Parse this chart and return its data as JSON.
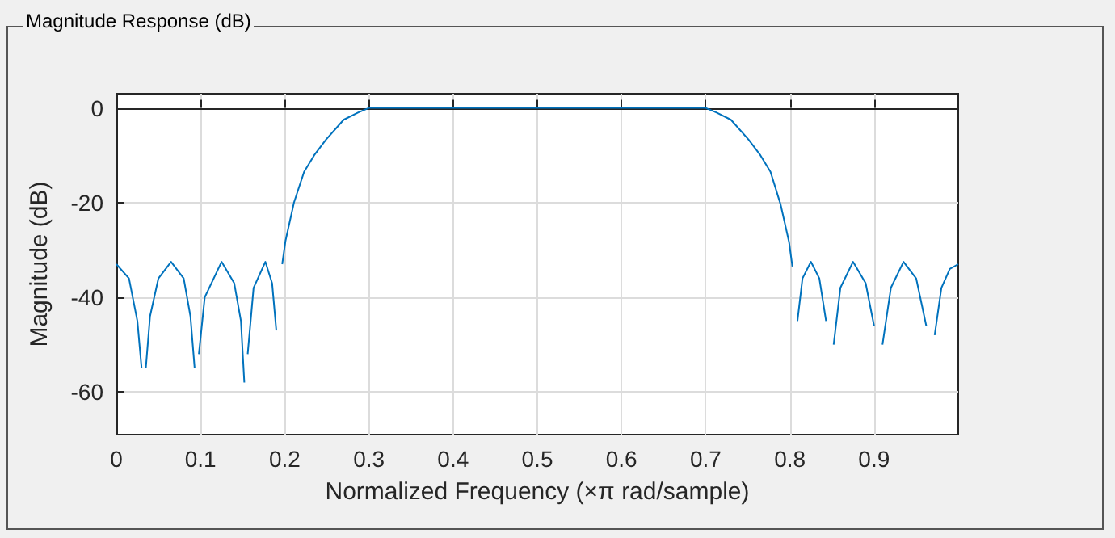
{
  "chart_data": {
    "type": "line",
    "title": "Magnitude Response (dB)",
    "xlabel": "Normalized Frequency (×π rad/sample)",
    "ylabel": "Magnitude (dB)",
    "xlim": [
      0,
      1
    ],
    "ylim": [
      -69,
      3
    ],
    "xticks": [
      0,
      0.1,
      0.2,
      0.3,
      0.4,
      0.5,
      0.6,
      0.7,
      0.8,
      0.9
    ],
    "yticks": [
      0,
      -20,
      -40,
      -60
    ],
    "grid": true,
    "marker": "none",
    "line_style": "solid",
    "series": [
      {
        "color": "#0072bd",
        "x": [
          0,
          0.015,
          0.025,
          0.03,
          0.032,
          0.035,
          0.04,
          0.05,
          0.065,
          0.08,
          0.088,
          0.093,
          0.095,
          0.098,
          0.105,
          0.125,
          0.14,
          0.148,
          0.152,
          0.153,
          0.156,
          0.163,
          0.177,
          0.185,
          0.19,
          0.193,
          0.197,
          0.201,
          0.211,
          0.223,
          0.235,
          0.249,
          0.27,
          0.287,
          0.3,
          0.4,
          0.5,
          0.6,
          0.7,
          0.713,
          0.73,
          0.751,
          0.765,
          0.777,
          0.789,
          0.799,
          0.803,
          0.806,
          0.809,
          0.815,
          0.825,
          0.835,
          0.843,
          0.848,
          0.852,
          0.86,
          0.875,
          0.89,
          0.9,
          0.905,
          0.91,
          0.92,
          0.935,
          0.95,
          0.962,
          0.967,
          0.972,
          0.98,
          0.99,
          1
        ],
        "values": [
          -33,
          -36,
          -45,
          -55,
          null,
          -55,
          -44,
          -36,
          -32.5,
          -36,
          -44,
          -55,
          null,
          -52,
          -40,
          -32.5,
          -37,
          -45,
          -58,
          null,
          -52,
          -38,
          -32.5,
          -37,
          -47,
          null,
          -33,
          -28,
          -20,
          -13.5,
          -10,
          -6.7,
          -2.5,
          -1,
          0,
          0,
          0,
          0,
          0,
          -1,
          -2.5,
          -6.7,
          -10,
          -13.5,
          -20.4,
          -28.3,
          -33.5,
          null,
          -45,
          -36,
          -32.5,
          -36,
          -45,
          null,
          -50,
          -38,
          -32.5,
          -37,
          -46,
          null,
          -50,
          -38,
          -32.5,
          -36,
          -46,
          null,
          -48,
          -38,
          -34,
          -33
        ]
      }
    ]
  }
}
